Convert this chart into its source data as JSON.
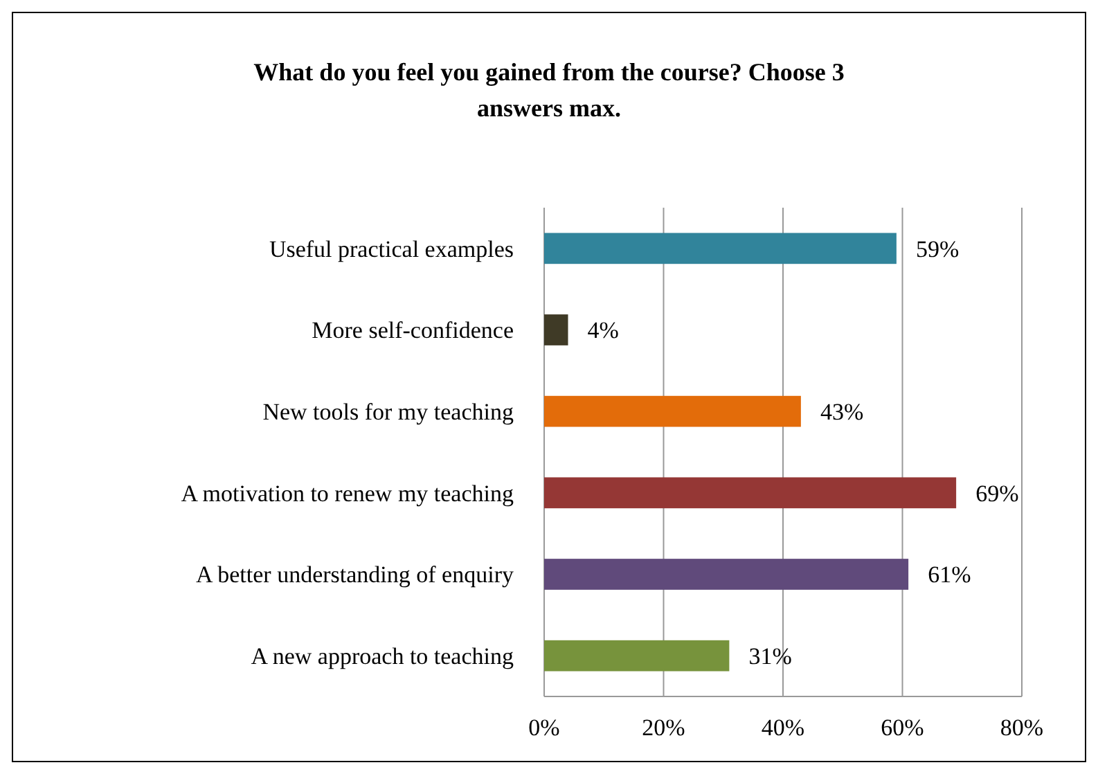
{
  "chart_data": {
    "type": "bar",
    "orientation": "horizontal",
    "title": "What do you feel you gained from the course? Choose 3 answers max.",
    "categories": [
      "Useful practical examples",
      "More self-confidence",
      "New tools for my teaching",
      "A motivation to renew my teaching",
      "A better understanding of enquiry",
      "A new approach to teaching"
    ],
    "values": [
      59,
      4,
      43,
      69,
      61,
      31
    ],
    "colors": [
      "#31849b",
      "#3f3a26",
      "#e36c0a",
      "#953735",
      "#604a7b",
      "#77933c"
    ],
    "value_labels": [
      "59%",
      "4%",
      "43%",
      "69%",
      "61%",
      "31%"
    ],
    "xlim": [
      0,
      80
    ],
    "xticks": [
      {
        "value": 0,
        "label": "0%"
      },
      {
        "value": 20,
        "label": "20%"
      },
      {
        "value": 40,
        "label": "40%"
      },
      {
        "value": 60,
        "label": "60%"
      },
      {
        "value": 80,
        "label": "80%"
      }
    ],
    "grid": "x"
  }
}
